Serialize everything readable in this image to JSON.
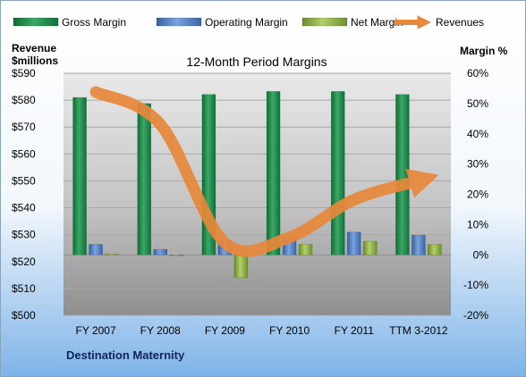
{
  "company": "Destination Maternity",
  "chart_data": {
    "type": "bar",
    "title": "12-Month Period Margins",
    "categories": [
      "FY 2007",
      "FY 2008",
      "FY 2009",
      "FY 2010",
      "FY 2011",
      "TTM 3-2012"
    ],
    "left_axis": {
      "label_line1": "Revenue",
      "label_line2": "$millions",
      "ylim": [
        500,
        590
      ],
      "ticks": [
        500,
        510,
        520,
        530,
        540,
        550,
        560,
        570,
        580,
        590
      ],
      "tick_labels": [
        "$500",
        "$510",
        "$520",
        "$530",
        "$540",
        "$550",
        "$560",
        "$570",
        "$580",
        "$590"
      ]
    },
    "right_axis": {
      "label": "Margin %",
      "ylim": [
        -20,
        60
      ],
      "ticks": [
        -20,
        -10,
        0,
        10,
        20,
        30,
        40,
        50,
        60
      ],
      "tick_labels": [
        "-20%",
        "-10%",
        "0%",
        "10%",
        "20%",
        "30%",
        "40%",
        "50%",
        "60%"
      ]
    },
    "series": [
      {
        "name": "Gross Margin",
        "type": "bar",
        "axis": "right",
        "color": "#1f8a4c",
        "values": [
          52,
          50,
          53,
          54,
          54,
          53
        ]
      },
      {
        "name": "Operating Margin",
        "type": "bar",
        "axis": "right",
        "color": "#4f7ec8",
        "values": [
          3.5,
          1.8,
          4.5,
          6,
          7.5,
          6.5
        ]
      },
      {
        "name": "Net Margin",
        "type": "bar",
        "axis": "right",
        "color": "#8fb24a",
        "values": [
          0.3,
          -0.3,
          -7.5,
          3.5,
          4.5,
          3.5
        ]
      },
      {
        "name": "Revenues",
        "type": "line",
        "axis": "left",
        "color": "#e8883a",
        "values": [
          583,
          571,
          527,
          529,
          543,
          550
        ]
      }
    ],
    "grid": true,
    "legend_position": "top"
  }
}
